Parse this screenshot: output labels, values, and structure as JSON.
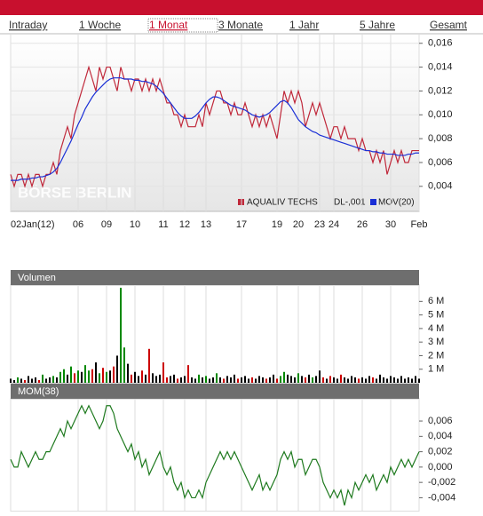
{
  "nav": {
    "tabs": [
      "Intraday",
      "1 Woche",
      "1 Monat",
      "3 Monate",
      "1 Jahr",
      "5 Jahre",
      "Gesamt"
    ],
    "selected": 2
  },
  "chart_data": [
    {
      "type": "line",
      "watermark": "BÖRSE BERLIN",
      "annotation": "DL-,001",
      "grid": true,
      "xlim": [
        0,
        115
      ],
      "xticks": [
        {
          "value": 0,
          "label": "02Jan(12)"
        },
        {
          "value": 19,
          "label": "06"
        },
        {
          "value": 27,
          "label": "09"
        },
        {
          "value": 35,
          "label": "10"
        },
        {
          "value": 43,
          "label": "11"
        },
        {
          "value": 49,
          "label": "12"
        },
        {
          "value": 55,
          "label": "13"
        },
        {
          "value": 65,
          "label": "17"
        },
        {
          "value": 75,
          "label": "19"
        },
        {
          "value": 81,
          "label": "20"
        },
        {
          "value": 87,
          "label": "23"
        },
        {
          "value": 91,
          "label": "24"
        },
        {
          "value": 99,
          "label": "26"
        },
        {
          "value": 107,
          "label": "30"
        },
        {
          "value": 115,
          "label": "Feb"
        }
      ],
      "ylim": [
        0.0019,
        0.0168
      ],
      "yticks": [
        {
          "value": 0.004,
          "label": "0,004"
        },
        {
          "value": 0.006,
          "label": "0,006"
        },
        {
          "value": 0.008,
          "label": "0,008"
        },
        {
          "value": 0.01,
          "label": "0,010"
        },
        {
          "value": 0.012,
          "label": "0,012"
        },
        {
          "value": 0.014,
          "label": "0,014"
        },
        {
          "value": 0.016,
          "label": "0,016"
        }
      ],
      "series": [
        {
          "name": "AQUALIV TECHS",
          "color": "#c0283a",
          "values": [
            0.005,
            0.004,
            0.005,
            0.005,
            0.004,
            0.005,
            0.004,
            0.005,
            0.005,
            0.004,
            0.005,
            0.005,
            0.006,
            0.005,
            0.007,
            0.008,
            0.009,
            0.008,
            0.01,
            0.011,
            0.012,
            0.013,
            0.014,
            0.013,
            0.012,
            0.014,
            0.013,
            0.014,
            0.014,
            0.013,
            0.012,
            0.014,
            0.013,
            0.013,
            0.012,
            0.013,
            0.013,
            0.012,
            0.013,
            0.012,
            0.013,
            0.012,
            0.013,
            0.012,
            0.011,
            0.011,
            0.01,
            0.01,
            0.009,
            0.01,
            0.009,
            0.009,
            0.009,
            0.01,
            0.009,
            0.011,
            0.01,
            0.011,
            0.012,
            0.012,
            0.011,
            0.011,
            0.01,
            0.011,
            0.01,
            0.01,
            0.011,
            0.01,
            0.009,
            0.01,
            0.009,
            0.01,
            0.009,
            0.01,
            0.009,
            0.008,
            0.01,
            0.012,
            0.011,
            0.012,
            0.011,
            0.012,
            0.011,
            0.009,
            0.01,
            0.011,
            0.01,
            0.011,
            0.01,
            0.009,
            0.008,
            0.009,
            0.009,
            0.008,
            0.009,
            0.008,
            0.008,
            0.008,
            0.007,
            0.008,
            0.007,
            0.007,
            0.006,
            0.007,
            0.006,
            0.007,
            0.005,
            0.006,
            0.007,
            0.006,
            0.007,
            0.006,
            0.006,
            0.007,
            0.007,
            0.007
          ]
        },
        {
          "name": "MOV(20)",
          "color": "#1a2fd6",
          "values": [
            0.0045,
            0.0045,
            0.0045,
            0.0046,
            0.0046,
            0.0046,
            0.0047,
            0.0047,
            0.0048,
            0.0048,
            0.0049,
            0.005,
            0.0052,
            0.0055,
            0.006,
            0.0066,
            0.0072,
            0.0078,
            0.0085,
            0.0092,
            0.0098,
            0.0105,
            0.011,
            0.0115,
            0.0119,
            0.0122,
            0.0125,
            0.0128,
            0.013,
            0.0131,
            0.0131,
            0.0131,
            0.013,
            0.013,
            0.013,
            0.0129,
            0.0129,
            0.0128,
            0.0128,
            0.0127,
            0.0126,
            0.0124,
            0.0121,
            0.0118,
            0.0114,
            0.011,
            0.0106,
            0.0102,
            0.0099,
            0.0097,
            0.0097,
            0.0097,
            0.0099,
            0.0102,
            0.0106,
            0.011,
            0.0113,
            0.0115,
            0.0115,
            0.0114,
            0.0112,
            0.011,
            0.0108,
            0.0107,
            0.0106,
            0.0105,
            0.0104,
            0.0102,
            0.01,
            0.0099,
            0.0098,
            0.0099,
            0.01,
            0.0102,
            0.0105,
            0.0108,
            0.0111,
            0.0112,
            0.011,
            0.0106,
            0.0101,
            0.0096,
            0.0093,
            0.009,
            0.0088,
            0.0086,
            0.0085,
            0.0083,
            0.0082,
            0.0081,
            0.008,
            0.0079,
            0.0078,
            0.0077,
            0.0076,
            0.0075,
            0.0074,
            0.0073,
            0.0072,
            0.0071,
            0.007,
            0.007,
            0.0069,
            0.0069,
            0.0068,
            0.0068,
            0.0067,
            0.0067,
            0.0067,
            0.0066,
            0.0066,
            0.0066,
            0.0067,
            0.0067,
            0.0068,
            0.0068
          ]
        }
      ]
    },
    {
      "type": "bar",
      "title": "Volumen",
      "xlim": [
        0,
        115
      ],
      "ylim": [
        0,
        7.2
      ],
      "yticks": [
        {
          "value": 1,
          "label": "1 M"
        },
        {
          "value": 2,
          "label": "2 M"
        },
        {
          "value": 3,
          "label": "3 M"
        },
        {
          "value": 4,
          "label": "4 M"
        },
        {
          "value": 5,
          "label": "5 M"
        },
        {
          "value": 6,
          "label": "6 M"
        }
      ],
      "values": [
        0.3,
        0.2,
        0.4,
        0.3,
        0.2,
        0.5,
        0.3,
        0.4,
        0.2,
        0.6,
        0.3,
        0.4,
        0.5,
        0.4,
        0.8,
        1.0,
        0.6,
        1.2,
        0.7,
        0.9,
        0.8,
        1.3,
        0.9,
        1.0,
        1.5,
        0.7,
        1.1,
        0.8,
        0.9,
        1.2,
        2.0,
        7.0,
        2.6,
        1.4,
        0.6,
        0.8,
        0.5,
        0.9,
        0.6,
        2.5,
        0.7,
        0.5,
        0.6,
        1.5,
        0.4,
        0.5,
        0.6,
        0.3,
        0.4,
        0.5,
        1.3,
        0.4,
        0.3,
        0.6,
        0.4,
        0.5,
        0.3,
        0.4,
        0.7,
        0.4,
        0.3,
        0.5,
        0.4,
        0.6,
        0.3,
        0.4,
        0.5,
        0.3,
        0.4,
        0.3,
        0.5,
        0.4,
        0.3,
        0.4,
        0.6,
        0.3,
        0.5,
        0.8,
        0.6,
        0.5,
        0.4,
        0.7,
        0.5,
        0.4,
        0.6,
        0.4,
        0.5,
        0.9,
        0.4,
        0.3,
        0.5,
        0.4,
        0.3,
        0.6,
        0.4,
        0.3,
        0.5,
        0.4,
        0.3,
        0.4,
        0.3,
        0.5,
        0.4,
        0.3,
        0.6,
        0.4,
        0.3,
        0.5,
        0.4,
        0.3,
        0.5,
        0.3,
        0.4,
        0.3,
        0.5,
        0.3
      ],
      "colors": [
        "#000",
        "#000",
        "#080",
        "#000",
        "#c00",
        "#000",
        "#000",
        "#000",
        "#c00",
        "#080",
        "#000",
        "#000",
        "#080",
        "#000",
        "#080",
        "#080",
        "#000",
        "#080",
        "#c00",
        "#080",
        "#000",
        "#080",
        "#080",
        "#c00",
        "#000",
        "#080",
        "#c00",
        "#080",
        "#000",
        "#c00",
        "#000",
        "#080",
        "#080",
        "#000",
        "#c00",
        "#000",
        "#000",
        "#c00",
        "#000",
        "#c00",
        "#000",
        "#000",
        "#000",
        "#c00",
        "#c00",
        "#000",
        "#000",
        "#c00",
        "#000",
        "#000",
        "#c00",
        "#000",
        "#000",
        "#080",
        "#000",
        "#080",
        "#000",
        "#000",
        "#080",
        "#000",
        "#c00",
        "#000",
        "#000",
        "#000",
        "#c00",
        "#000",
        "#000",
        "#000",
        "#c00",
        "#000",
        "#000",
        "#000",
        "#c00",
        "#000",
        "#000",
        "#c00",
        "#080",
        "#080",
        "#000",
        "#000",
        "#000",
        "#080",
        "#000",
        "#c00",
        "#000",
        "#080",
        "#000",
        "#000",
        "#c00",
        "#000",
        "#c00",
        "#000",
        "#000",
        "#c00",
        "#000",
        "#000",
        "#000",
        "#000",
        "#c00",
        "#000",
        "#000",
        "#000",
        "#c00",
        "#000",
        "#000",
        "#000",
        "#000",
        "#000",
        "#000",
        "#000",
        "#000",
        "#000",
        "#000",
        "#000",
        "#000",
        "#000"
      ]
    },
    {
      "type": "line",
      "title": "MOM(38)",
      "xlim": [
        0,
        115
      ],
      "ylim": [
        -0.0058,
        0.0089
      ],
      "color": "#1f7a1f",
      "yticks": [
        {
          "value": -0.004,
          "label": "-0,004"
        },
        {
          "value": -0.002,
          "label": "-0,002"
        },
        {
          "value": 0,
          "label": "0,000"
        },
        {
          "value": 0.002,
          "label": "0,002"
        },
        {
          "value": 0.004,
          "label": "0,004"
        },
        {
          "value": 0.006,
          "label": "0,006"
        }
      ],
      "values": [
        0.001,
        0.0,
        0.0,
        0.002,
        0.001,
        0.0,
        0.001,
        0.002,
        0.001,
        0.001,
        0.002,
        0.002,
        0.003,
        0.004,
        0.005,
        0.004,
        0.006,
        0.005,
        0.006,
        0.007,
        0.008,
        0.007,
        0.008,
        0.007,
        0.006,
        0.005,
        0.006,
        0.008,
        0.008,
        0.007,
        0.005,
        0.004,
        0.003,
        0.002,
        0.003,
        0.001,
        0.002,
        0.0,
        0.001,
        -0.001,
        0.0,
        0.001,
        0.002,
        0.0,
        -0.001,
        0.0,
        -0.002,
        -0.003,
        -0.002,
        -0.004,
        -0.003,
        -0.004,
        -0.004,
        -0.003,
        -0.004,
        -0.002,
        -0.001,
        0.0,
        0.001,
        0.002,
        0.001,
        0.002,
        0.001,
        0.002,
        0.001,
        0.0,
        -0.001,
        -0.002,
        -0.003,
        -0.002,
        -0.001,
        -0.003,
        -0.002,
        -0.003,
        -0.002,
        -0.001,
        0.001,
        0.002,
        0.001,
        0.002,
        0.0,
        0.001,
        0.001,
        -0.001,
        0.0,
        0.001,
        0.001,
        0.0,
        -0.002,
        -0.003,
        -0.004,
        -0.003,
        -0.004,
        -0.003,
        -0.005,
        -0.003,
        -0.004,
        -0.002,
        -0.003,
        -0.002,
        -0.001,
        -0.002,
        -0.001,
        -0.003,
        -0.002,
        -0.001,
        -0.002,
        0.0,
        -0.001,
        0.0,
        0.001,
        0.0,
        0.001,
        0.0,
        0.001,
        0.002
      ]
    }
  ]
}
